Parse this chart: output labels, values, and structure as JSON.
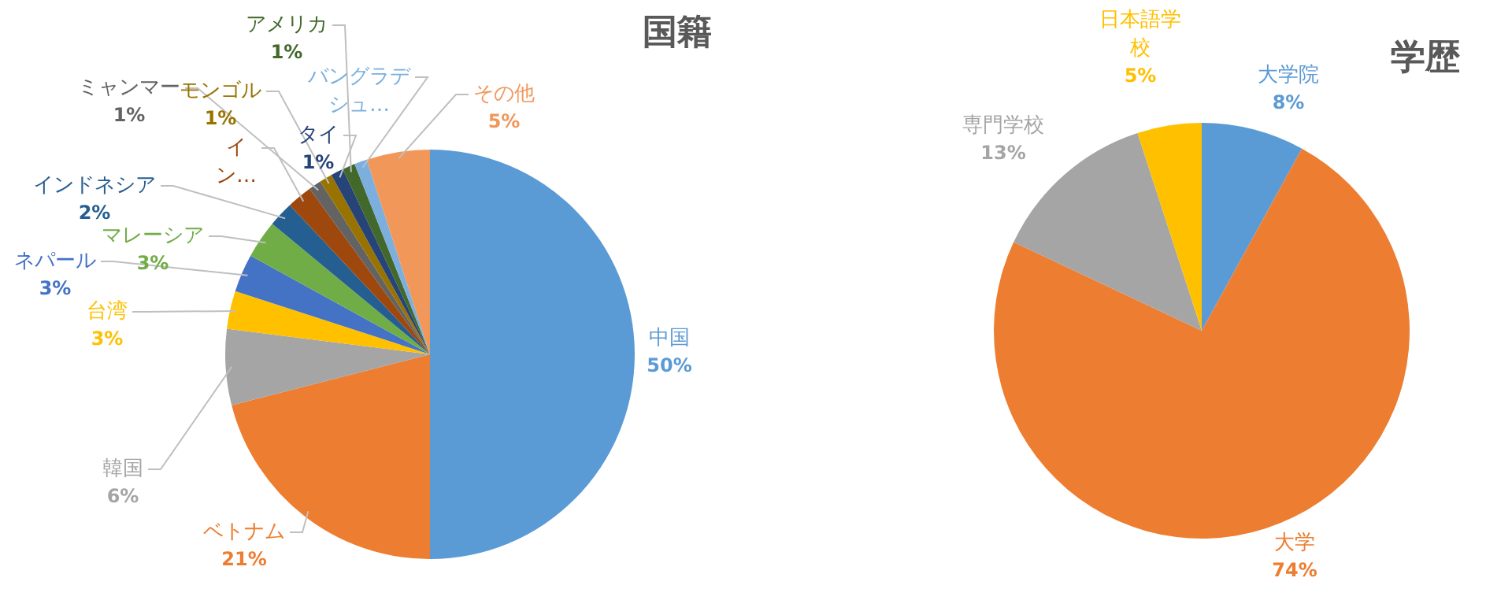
{
  "chart_data": [
    {
      "type": "pie",
      "title": "国籍",
      "categories": [
        "中国",
        "ベトナム",
        "韓国",
        "台湾",
        "ネパール",
        "マレーシア",
        "インドネシア",
        "イン…",
        "ミャンマー",
        "モンゴル",
        "タイ",
        "アメリカ",
        "バングラデシュ…",
        "その他"
      ],
      "values": [
        50,
        21,
        6,
        3,
        3,
        3,
        2,
        2,
        1,
        1,
        1,
        1,
        1,
        5
      ],
      "colors": [
        "#5b9bd5",
        "#ed7d31",
        "#a5a5a5",
        "#ffc000",
        "#4472c4",
        "#70ad47",
        "#255e91",
        "#9e480e",
        "#636363",
        "#997300",
        "#264478",
        "#43682b",
        "#7cafdd",
        "#f1975a"
      ],
      "value_labels": [
        "50%",
        "21%",
        "6%",
        "3%",
        "3%",
        "3%",
        "2%",
        null,
        "1%",
        "1%",
        "1%",
        "1%",
        null,
        "5%"
      ],
      "legend": false
    },
    {
      "type": "pie",
      "title": "学歴",
      "categories": [
        "大学院",
        "大学",
        "専門学校",
        "日本語学校"
      ],
      "values": [
        8,
        74,
        13,
        5
      ],
      "colors": [
        "#5b9bd5",
        "#ed7d31",
        "#a5a5a5",
        "#ffc000"
      ],
      "value_labels": [
        "8%",
        "74%",
        "13%",
        "5%"
      ],
      "legend": false
    }
  ]
}
